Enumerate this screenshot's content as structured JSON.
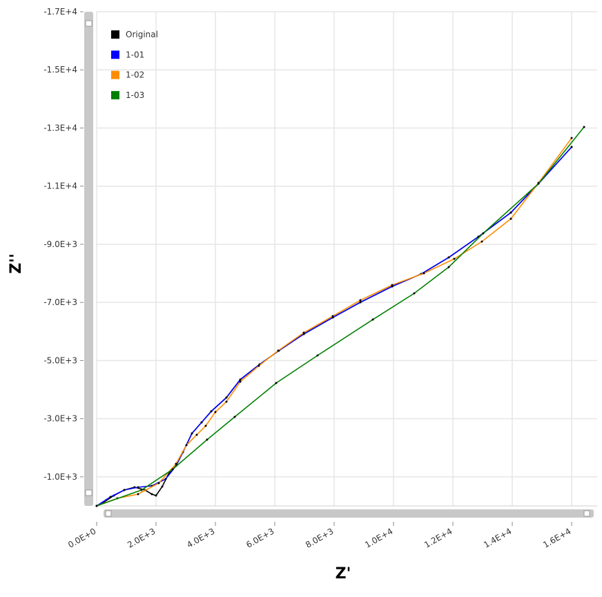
{
  "chart_data": {
    "type": "line",
    "x_label": "Z'",
    "y_label": "Z''",
    "xlim": [
      0,
      16860
    ],
    "ylim": [
      0,
      -17000
    ],
    "xticks": [
      {
        "value": 0,
        "label": "0.0E+0"
      },
      {
        "value": 2000,
        "label": "2.0E+3"
      },
      {
        "value": 4000,
        "label": "4.0E+3"
      },
      {
        "value": 6000,
        "label": "6.0E+3"
      },
      {
        "value": 8000,
        "label": "8.0E+3"
      },
      {
        "value": 10000,
        "label": "1.0E+4"
      },
      {
        "value": 12000,
        "label": "1.2E+4"
      },
      {
        "value": 14000,
        "label": "1.4E+4"
      },
      {
        "value": 16000,
        "label": "1.6E+4"
      }
    ],
    "yticks": [
      {
        "value": -1000,
        "label": "-1.0E+3"
      },
      {
        "value": -3000,
        "label": "-3.0E+3"
      },
      {
        "value": -5000,
        "label": "-5.0E+3"
      },
      {
        "value": -7000,
        "label": "-7.0E+3"
      },
      {
        "value": -9000,
        "label": "-9.0E+3"
      },
      {
        "value": -11000,
        "label": "-1.1E+4"
      },
      {
        "value": -13000,
        "label": "-1.3E+4"
      },
      {
        "value": -15000,
        "label": "-1.5E+4"
      },
      {
        "value": -17000,
        "label": "-1.7E+4"
      }
    ],
    "grid": true,
    "legend": "upper left",
    "series": [
      {
        "name": "Original",
        "color": "#000000",
        "x": [
          0,
          233,
          581,
          930,
          1279,
          1628,
          1860,
          2000,
          2209,
          2442,
          2674,
          2907,
          3209,
          3535,
          3860,
          4372,
          4837,
          5488,
          6140,
          6977,
          7953,
          8884,
          9953,
          10930,
          11860,
          12860,
          13953,
          14884,
          16000
        ],
        "values": [
          0,
          -119,
          -356,
          -546,
          -641,
          -546,
          -404,
          -356,
          -665,
          -1140,
          -1377,
          -1852,
          -2493,
          -2873,
          -3253,
          -3727,
          -4345,
          -4867,
          -5342,
          -5912,
          -6481,
          -7004,
          -7550,
          -7977,
          -8547,
          -9259,
          -10090,
          -11087,
          -12346
        ]
      },
      {
        "name": "1-01",
        "color": "#0000ff",
        "x": [
          0,
          465,
          930,
          1395,
          1860,
          2326,
          2674,
          2907,
          3209,
          3535,
          3860,
          4372,
          4837,
          5488,
          6140,
          6977,
          7953,
          8884,
          9953,
          10930,
          11860,
          12860,
          13953,
          14884,
          16000
        ],
        "values": [
          0,
          -309,
          -546,
          -641,
          -689,
          -926,
          -1377,
          -1852,
          -2493,
          -2873,
          -3253,
          -3727,
          -4345,
          -4867,
          -5342,
          -5912,
          -6481,
          -7004,
          -7550,
          -7977,
          -8547,
          -9259,
          -10090,
          -11087,
          -12346
        ]
      },
      {
        "name": "1-02",
        "color": "#ff8c00",
        "x": [
          0,
          698,
          1395,
          2093,
          2674,
          3023,
          3372,
          3674,
          4000,
          4372,
          4837,
          5465,
          6116,
          6977,
          7953,
          8884,
          9953,
          11023,
          12047,
          12977,
          13953,
          14884,
          16000
        ],
        "values": [
          0,
          -261,
          -404,
          -784,
          -1448,
          -2089,
          -2446,
          -2754,
          -3229,
          -3585,
          -4273,
          -4820,
          -5342,
          -5959,
          -6529,
          -7075,
          -7597,
          -8001,
          -8500,
          -9093,
          -9877,
          -11111,
          -12654
        ]
      },
      {
        "name": "1-03",
        "color": "#008000",
        "x": [
          0,
          1512,
          2558,
          3721,
          4651,
          6047,
          7442,
          9302,
          10698,
          11860,
          13023,
          14884,
          16419
        ],
        "values": [
          0,
          -546,
          -1258,
          -2279,
          -3063,
          -4226,
          -5176,
          -6410,
          -7313,
          -8215,
          -9378,
          -11087,
          -13034
        ]
      }
    ]
  }
}
